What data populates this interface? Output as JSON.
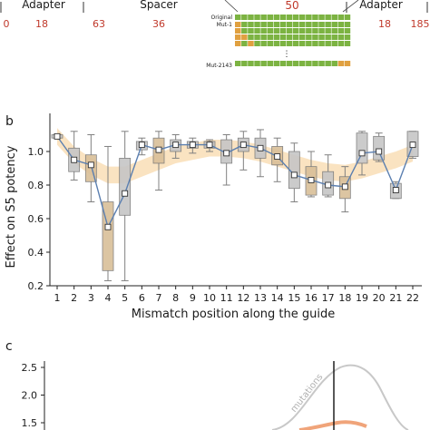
{
  "panel_a": {
    "adapter_left_label": "Adapter",
    "spacer_label": "Spacer",
    "adapter_right_label": "Adapter",
    "center_value": "50",
    "scale_ticks": [
      "0",
      "18",
      "63",
      "36",
      "18",
      "185"
    ],
    "row_labels": [
      "Original",
      "Mut-1",
      "Mut-2143"
    ],
    "ellipsis": "⋮"
  },
  "panel_b": {
    "panel_label": "b",
    "chart_data": {
      "type": "box",
      "xlabel": "Mismatch position along the guide",
      "ylabel": "Effect on S5 potency",
      "categories": [
        "1",
        "2",
        "3",
        "4",
        "5",
        "6",
        "7",
        "8",
        "9",
        "10",
        "11",
        "12",
        "13",
        "14",
        "15",
        "16",
        "17",
        "18",
        "19",
        "20",
        "21",
        "22"
      ],
      "ylim": [
        0.2,
        1.2
      ],
      "yticks": [
        "0.2",
        "0.4",
        "0.6",
        "0.8",
        "1.0"
      ],
      "medians": [
        1.09,
        0.95,
        0.92,
        0.55,
        0.75,
        1.04,
        1.01,
        1.04,
        1.04,
        1.04,
        0.99,
        1.04,
        1.02,
        0.97,
        0.86,
        0.83,
        0.8,
        0.79,
        0.99,
        1.0,
        0.77,
        1.04
      ],
      "boxes": [
        {
          "q1": 1.08,
          "q3": 1.1,
          "min": 1.08,
          "max": 1.1
        },
        {
          "q1": 0.88,
          "q3": 1.02,
          "min": 0.83,
          "max": 1.12
        },
        {
          "q1": 0.82,
          "q3": 0.98,
          "min": 0.7,
          "max": 1.1
        },
        {
          "q1": 0.29,
          "q3": 0.7,
          "min": 0.23,
          "max": 1.03
        },
        {
          "q1": 0.62,
          "q3": 0.96,
          "min": 0.23,
          "max": 1.12
        },
        {
          "q1": 1.01,
          "q3": 1.06,
          "min": 0.98,
          "max": 1.08
        },
        {
          "q1": 0.93,
          "q3": 1.08,
          "min": 0.77,
          "max": 1.12
        },
        {
          "q1": 1.0,
          "q3": 1.07,
          "min": 0.96,
          "max": 1.1
        },
        {
          "q1": 1.02,
          "q3": 1.06,
          "min": 0.99,
          "max": 1.08
        },
        {
          "q1": 1.02,
          "q3": 1.06,
          "min": 1.0,
          "max": 1.07
        },
        {
          "q1": 0.93,
          "q3": 1.07,
          "min": 0.8,
          "max": 1.1
        },
        {
          "q1": 1.0,
          "q3": 1.08,
          "min": 0.89,
          "max": 1.12
        },
        {
          "q1": 0.96,
          "q3": 1.08,
          "min": 0.85,
          "max": 1.13
        },
        {
          "q1": 0.92,
          "q3": 1.03,
          "min": 0.82,
          "max": 1.08
        },
        {
          "q1": 0.78,
          "q3": 1.0,
          "min": 0.7,
          "max": 1.05
        },
        {
          "q1": 0.74,
          "q3": 0.91,
          "min": 0.73,
          "max": 1.0
        },
        {
          "q1": 0.74,
          "q3": 0.88,
          "min": 0.73,
          "max": 0.98
        },
        {
          "q1": 0.72,
          "q3": 0.85,
          "min": 0.64,
          "max": 0.91
        },
        {
          "q1": 0.93,
          "q3": 1.11,
          "min": 0.86,
          "max": 1.12
        },
        {
          "q1": 0.95,
          "q3": 1.09,
          "min": 0.94,
          "max": 1.11
        },
        {
          "q1": 0.72,
          "q3": 0.81,
          "min": 0.72,
          "max": 0.82
        },
        {
          "q1": 0.97,
          "q3": 1.12,
          "min": 0.96,
          "max": 1.12
        }
      ],
      "highlighted_boxes": [
        2,
        3,
        6,
        13,
        15,
        17
      ],
      "band_center": [
        1.09,
        0.98,
        0.91,
        0.86,
        0.86,
        0.9,
        0.94,
        0.98,
        1.0,
        1.02,
        1.02,
        1.01,
        0.99,
        0.96,
        0.93,
        0.9,
        0.88,
        0.87,
        0.89,
        0.92,
        0.95,
        0.99
      ],
      "colors": {
        "box_gray": "#c6c6c6",
        "box_tan": "#d9bf98",
        "band": "#f9deb6",
        "line": "#5b7fb0",
        "whisker": "#808080"
      }
    }
  },
  "panel_c": {
    "panel_label": "c",
    "chart_data": {
      "type": "line",
      "yticks": [
        "2.5",
        "2.0",
        "1.5"
      ],
      "ylim": [
        1.4,
        2.7
      ],
      "rotated_label": "mutations",
      "colors": {
        "gray_curve": "#c8c8c8",
        "orange_curve": "#f0a47a",
        "divider": "#111111"
      }
    }
  }
}
